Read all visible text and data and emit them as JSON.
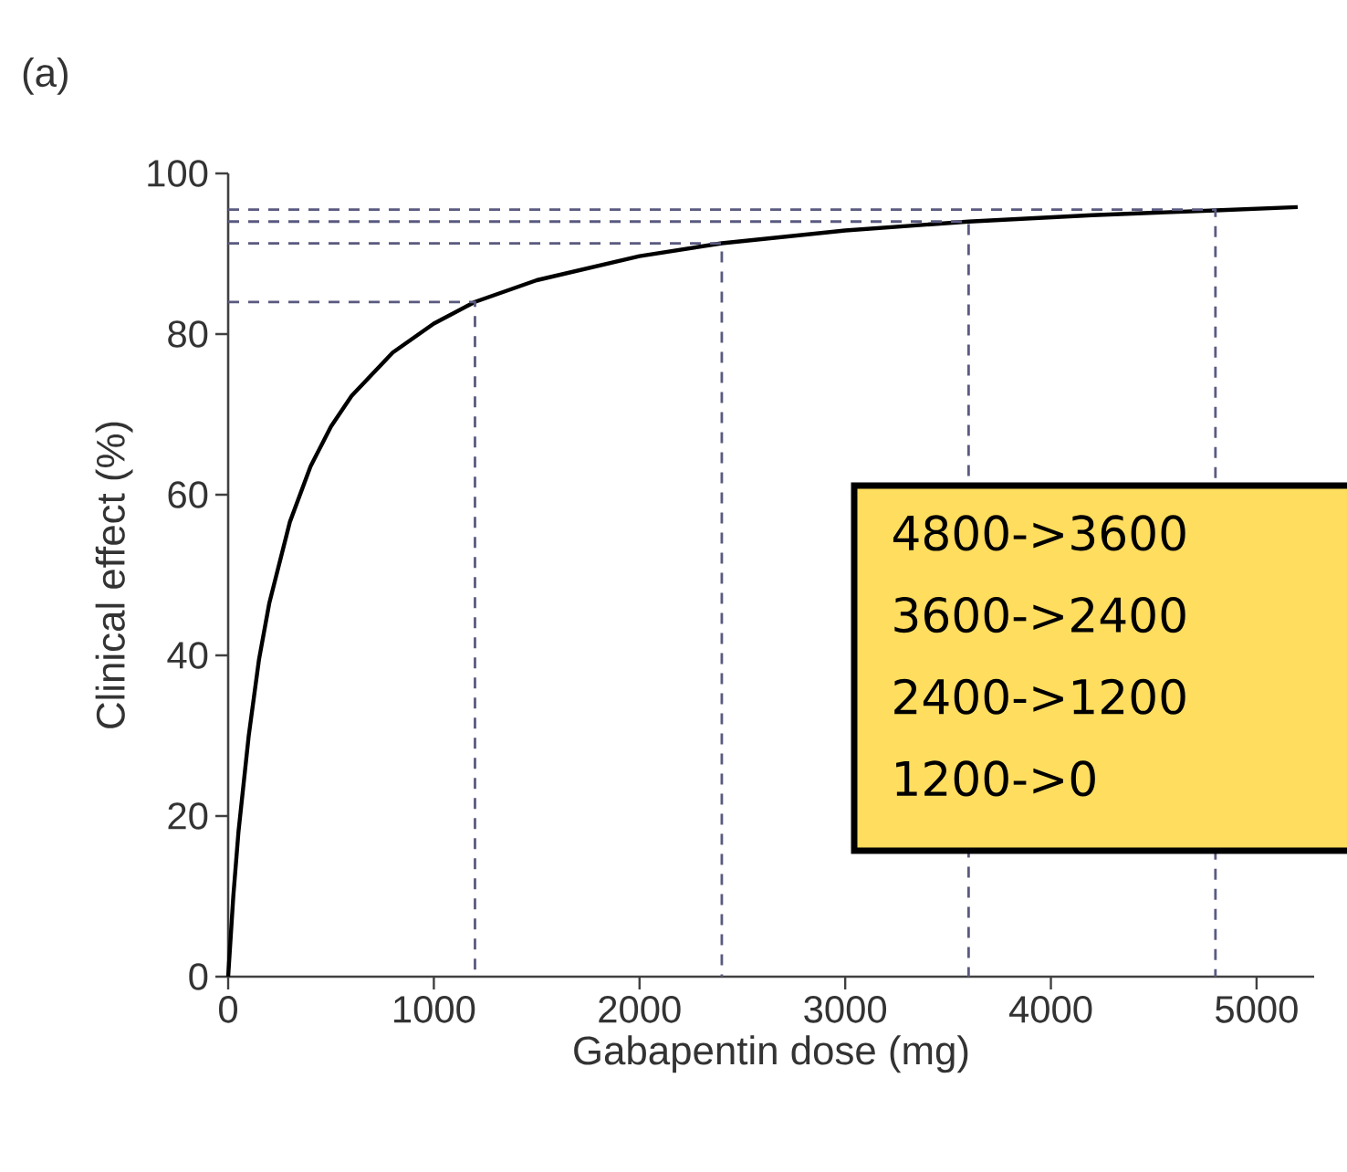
{
  "chart_data": {
    "type": "line",
    "xlabel": "Gabapentin dose (mg)",
    "ylabel": "Clinical effect (%)",
    "xlim": [
      0,
      5280
    ],
    "ylim": [
      0,
      100
    ],
    "xticks": [
      0,
      1000,
      2000,
      3000,
      4000,
      5000
    ],
    "yticks": [
      0,
      20,
      40,
      60,
      80,
      100
    ],
    "marker": "none",
    "series": [
      {
        "color": "#000000",
        "line_style": "solid",
        "x": [
          0,
          25,
          50,
          100,
          150,
          200,
          300,
          400,
          500,
          600,
          800,
          1000,
          1200,
          1500,
          2000,
          2400,
          3000,
          3600,
          4200,
          4800,
          5200
        ],
        "values": [
          0,
          10,
          18,
          30,
          39.5,
          46.5,
          56.6,
          63.5,
          68.5,
          72.3,
          77.7,
          81.3,
          84,
          86.7,
          89.7,
          91.3,
          92.9,
          94,
          94.8,
          95.4,
          95.8
        ]
      },
      {
        "color": "#5a5a80",
        "line_style": "dashed",
        "x": [
          0,
          1200,
          1200
        ],
        "values": [
          84,
          84,
          0
        ]
      },
      {
        "color": "#5a5a80",
        "line_style": "dashed",
        "x": [
          0,
          2400,
          2400
        ],
        "values": [
          91.3,
          91.3,
          0
        ]
      },
      {
        "color": "#5a5a80",
        "line_style": "dashed",
        "x": [
          0,
          3600,
          3600
        ],
        "values": [
          94,
          94,
          0
        ]
      },
      {
        "color": "#5a5a80",
        "line_style": "dashed",
        "x": [
          0,
          4800,
          4800
        ],
        "values": [
          95.5,
          95.5,
          0
        ]
      }
    ],
    "annotations": [
      "(a)",
      "4800->3600",
      "3600->2400",
      "2400->1200",
      "1200->0"
    ]
  }
}
